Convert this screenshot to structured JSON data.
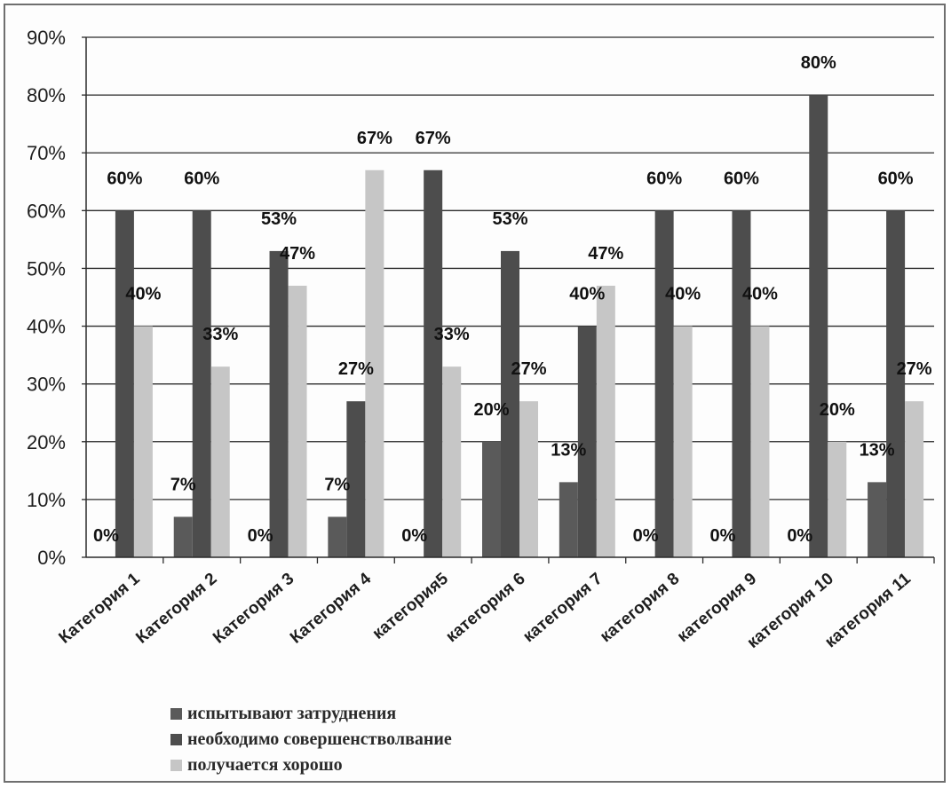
{
  "chart_data": {
    "type": "bar",
    "categories": [
      "Категория 1",
      "Категория 2",
      "Категория 3",
      "Категория 4",
      "категория5",
      "категория 6",
      "категория 7",
      "категория 8",
      "категория 9",
      "категория 10",
      "категория 11"
    ],
    "series": [
      {
        "name": "испытывают затруднения",
        "color": "#5a5a5a",
        "values": [
          0,
          7,
          0,
          7,
          0,
          20,
          13,
          0,
          0,
          0,
          13
        ]
      },
      {
        "name": "необходимо совершенстволвание",
        "color": "#4d4d4d",
        "values": [
          60,
          60,
          53,
          27,
          67,
          53,
          40,
          60,
          60,
          80,
          60
        ]
      },
      {
        "name": "получается хорошо",
        "color": "#c6c6c6",
        "values": [
          40,
          33,
          47,
          67,
          33,
          27,
          47,
          40,
          40,
          20,
          27
        ]
      }
    ],
    "value_labels": [
      [
        "0%",
        "7%",
        "0%",
        "7%",
        "0%",
        "20%",
        "13%",
        "0%",
        "0%",
        "0%",
        "13%"
      ],
      [
        "60%",
        "60%",
        "53%",
        "27%",
        "67%",
        "53%",
        "40%",
        "60%",
        "60%",
        "80%",
        "60%"
      ],
      [
        "40%",
        "33%",
        "47%",
        "67%",
        "33%",
        "27%",
        "47%",
        "40%",
        "40%",
        "20%",
        "27%"
      ]
    ],
    "y_ticks": [
      "0%",
      "10%",
      "20%",
      "30%",
      "40%",
      "50%",
      "60%",
      "70%",
      "80%",
      "90%"
    ],
    "ylim": [
      0,
      90
    ],
    "grid": true,
    "legend_position": "bottom-left",
    "title": "",
    "xlabel": "",
    "ylabel": ""
  }
}
